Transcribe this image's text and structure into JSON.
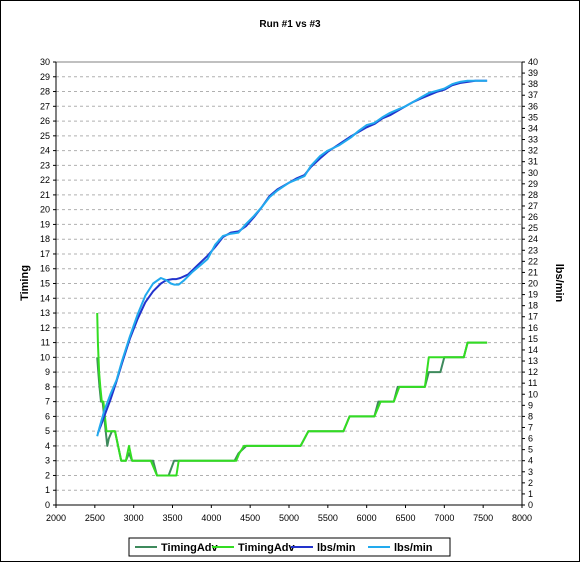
{
  "chart_data": {
    "type": "line",
    "title": "Run #1 vs #3",
    "xlabel": "",
    "ylabel_left": "Timing",
    "ylabel_right": "lbs/min",
    "xlim": [
      2000,
      8000
    ],
    "ylim_left": [
      0,
      30
    ],
    "ylim_right": [
      0,
      40
    ],
    "x_ticks": [
      2000,
      2500,
      3000,
      3500,
      4000,
      4500,
      5000,
      5500,
      6000,
      6500,
      7000,
      7500,
      8000
    ],
    "y_ticks_left": [
      0,
      1,
      2,
      3,
      4,
      5,
      6,
      7,
      8,
      9,
      10,
      11,
      12,
      13,
      14,
      15,
      16,
      17,
      18,
      19,
      20,
      21,
      22,
      23,
      24,
      25,
      26,
      27,
      28,
      29,
      30
    ],
    "y_ticks_right": [
      0,
      1,
      2,
      3,
      4,
      5,
      6,
      7,
      8,
      9,
      10,
      11,
      12,
      13,
      14,
      15,
      16,
      17,
      18,
      19,
      20,
      21,
      22,
      23,
      24,
      25,
      26,
      27,
      28,
      29,
      30,
      31,
      32,
      33,
      34,
      35,
      36,
      37,
      38,
      39,
      40
    ],
    "grid": "horizontal dashed",
    "legend_position": "bottom",
    "series": [
      {
        "name": "TimingAdv",
        "axis": "left",
        "color": "#3e8a5c",
        "x": [
          2530,
          2545,
          2560,
          2580,
          2600,
          2620,
          2640,
          2660,
          2680,
          2720,
          2760,
          2800,
          2840,
          2900,
          2940,
          2980,
          3050,
          3120,
          3250,
          3300,
          3380,
          3450,
          3520,
          3600,
          3700,
          4000,
          4300,
          4350,
          4450,
          4700,
          5000,
          5150,
          5250,
          5500,
          5700,
          5780,
          5900,
          6100,
          6150,
          6350,
          6400,
          6600,
          6750,
          6800,
          6950,
          7000,
          7250,
          7300,
          7550
        ],
        "y": [
          10,
          9,
          8,
          7,
          7,
          6,
          5,
          4,
          4.5,
          5,
          5,
          4,
          3,
          3,
          3.5,
          3,
          3,
          3,
          3,
          2,
          2,
          2,
          3,
          3,
          3,
          3,
          3,
          3.5,
          4,
          4,
          4,
          4,
          5,
          5,
          5,
          6,
          6,
          6,
          7,
          7,
          8,
          8,
          8,
          9,
          9,
          10,
          10,
          11,
          11
        ]
      },
      {
        "name": "TimingAdv",
        "axis": "left",
        "color": "#33dd22",
        "x": [
          2530,
          2540,
          2555,
          2570,
          2590,
          2610,
          2630,
          2650,
          2700,
          2760,
          2800,
          2840,
          2900,
          2940,
          2980,
          3020,
          3120,
          3220,
          3300,
          3380,
          3450,
          3500,
          3550,
          3580,
          3620,
          4000,
          4320,
          4360,
          4420,
          4700,
          5000,
          5150,
          5250,
          5500,
          5700,
          5780,
          5900,
          6100,
          6180,
          6350,
          6420,
          6600,
          6750,
          6800,
          6950,
          7000,
          7250,
          7300,
          7550
        ],
        "y": [
          13,
          11,
          9,
          8,
          7,
          7,
          6,
          5,
          5,
          5,
          4,
          3,
          3,
          4,
          3,
          3,
          3,
          3,
          2,
          2,
          2,
          2,
          2,
          3,
          3,
          3,
          3,
          3.5,
          4,
          4,
          4,
          4,
          5,
          5,
          5,
          6,
          6,
          6,
          7,
          7,
          8,
          8,
          8,
          10,
          10,
          10,
          10,
          11,
          11
        ]
      },
      {
        "name": "lbs/min",
        "axis": "right",
        "color": "#2233cc",
        "x": [
          2540,
          2580,
          2620,
          2700,
          2780,
          2850,
          2950,
          3050,
          3150,
          3250,
          3350,
          3420,
          3500,
          3550,
          3600,
          3700,
          3800,
          3950,
          4050,
          4150,
          4250,
          4350,
          4450,
          4550,
          4650,
          4750,
          4850,
          5000,
          5100,
          5200,
          5280,
          5400,
          5500,
          5650,
          5800,
          5900,
          6000,
          6100,
          6200,
          6300,
          6400,
          6500,
          6600,
          6700,
          6800,
          6900,
          7000,
          7100,
          7150,
          7200,
          7300,
          7400,
          7550
        ],
        "y": [
          6.5,
          7.2,
          8,
          9.5,
          11.2,
          12.8,
          15,
          16.8,
          18.3,
          19.3,
          20,
          20.3,
          20.4,
          20.4,
          20.5,
          20.8,
          21.5,
          22.5,
          23.3,
          24.2,
          24.6,
          24.7,
          25.2,
          26,
          26.9,
          27.9,
          28.5,
          29.1,
          29.5,
          29.8,
          30.5,
          31.3,
          31.9,
          32.6,
          33.3,
          33.7,
          34.1,
          34.4,
          34.9,
          35.2,
          35.6,
          36,
          36.4,
          36.7,
          37,
          37.3,
          37.5,
          37.9,
          38,
          38.1,
          38.2,
          38.3,
          38.3
        ]
      },
      {
        "name": "lbs/min",
        "axis": "right",
        "color": "#22aaee",
        "x": [
          2530,
          2560,
          2620,
          2700,
          2780,
          2850,
          2950,
          3050,
          3150,
          3250,
          3350,
          3420,
          3480,
          3520,
          3580,
          3650,
          3750,
          3850,
          3950,
          4050,
          4150,
          4250,
          4350,
          4450,
          4550,
          4650,
          4750,
          4850,
          5000,
          5100,
          5200,
          5280,
          5400,
          5500,
          5650,
          5800,
          5900,
          6000,
          6100,
          6200,
          6300,
          6400,
          6500,
          6600,
          6700,
          6800,
          6900,
          7000,
          7100,
          7150,
          7200,
          7300,
          7400,
          7550
        ],
        "y": [
          6.2,
          7,
          8.5,
          10,
          11.3,
          13,
          15.2,
          17.2,
          18.9,
          20,
          20.5,
          20.3,
          20,
          19.9,
          19.9,
          20.3,
          21,
          21.6,
          22.2,
          23.5,
          24.3,
          24.5,
          24.6,
          25.4,
          26.1,
          26.9,
          27.8,
          28.4,
          29.1,
          29.4,
          29.7,
          30.6,
          31.5,
          32,
          32.5,
          33.2,
          33.8,
          34.3,
          34.5,
          35,
          35.4,
          35.7,
          36,
          36.4,
          36.8,
          37.2,
          37.4,
          37.6,
          38,
          38.1,
          38.2,
          38.3,
          38.3,
          38.3
        ]
      }
    ]
  }
}
